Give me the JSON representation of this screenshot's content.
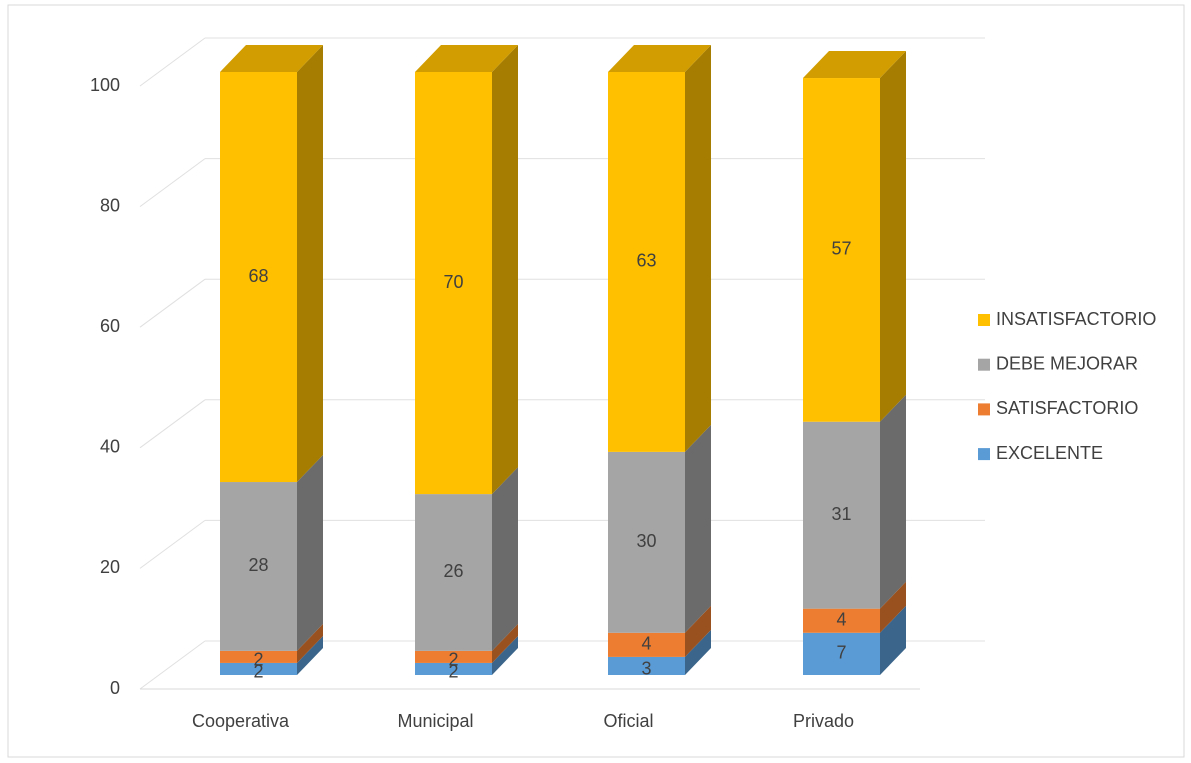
{
  "chart_data": {
    "type": "bar3d_stacked",
    "categories": [
      "Cooperativa",
      "Municipal",
      "Oficial",
      "Privado"
    ],
    "series": [
      {
        "name": "EXCELENTE",
        "color": "#5b9bd5",
        "values": [
          2,
          2,
          3,
          7
        ]
      },
      {
        "name": "SATISFACTORIO",
        "color": "#ed7d31",
        "values": [
          2,
          2,
          4,
          4
        ]
      },
      {
        "name": "DEBE MEJORAR",
        "color": "#a5a5a5",
        "values": [
          28,
          26,
          30,
          31
        ]
      },
      {
        "name": "INSATISFACTORIO",
        "color": "#ffc000",
        "values": [
          68,
          70,
          63,
          57
        ]
      }
    ],
    "ylim": [
      0,
      100
    ],
    "yticks": [
      0,
      20,
      40,
      60,
      80,
      100
    ],
    "grid": true,
    "legend": "right"
  }
}
